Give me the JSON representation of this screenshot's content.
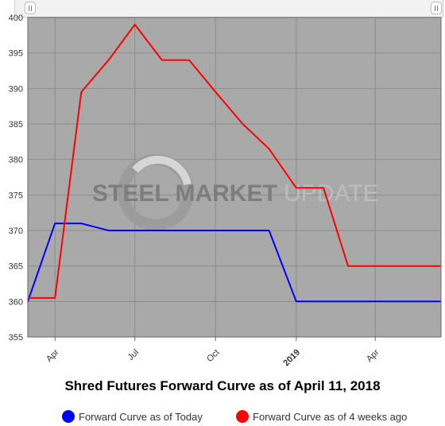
{
  "chart_data": {
    "type": "line",
    "title": "Shred Futures Forward Curve as of April 11, 2018",
    "ylim": [
      355,
      400
    ],
    "yticks": [
      355,
      360,
      365,
      370,
      375,
      380,
      385,
      390,
      395,
      400
    ],
    "xlim": [
      "2018-03-01",
      "2019-06-15"
    ],
    "xticks": [
      {
        "date": "2018-04-01",
        "label": "Apr",
        "bold": false
      },
      {
        "date": "2018-07-01",
        "label": "Jul",
        "bold": false
      },
      {
        "date": "2018-10-01",
        "label": "Oct",
        "bold": false
      },
      {
        "date": "2019-01-01",
        "label": "2019",
        "bold": true
      },
      {
        "date": "2019-04-01",
        "label": "Apr",
        "bold": false
      }
    ],
    "grid": true,
    "legend_position": "bottom",
    "series": [
      {
        "name": "Forward Curve as of Today",
        "color": "#0000ff",
        "points": [
          [
            "2018-03-01",
            360
          ],
          [
            "2018-04-01",
            371
          ],
          [
            "2018-05-01",
            371
          ],
          [
            "2018-06-01",
            370
          ],
          [
            "2018-07-01",
            370
          ],
          [
            "2018-08-01",
            370
          ],
          [
            "2018-09-01",
            370
          ],
          [
            "2018-10-01",
            370
          ],
          [
            "2018-11-01",
            370
          ],
          [
            "2018-12-01",
            370
          ],
          [
            "2019-01-01",
            360
          ],
          [
            "2019-02-01",
            360
          ],
          [
            "2019-03-01",
            360
          ],
          [
            "2019-04-01",
            360
          ],
          [
            "2019-05-01",
            360
          ],
          [
            "2019-06-15",
            360
          ]
        ]
      },
      {
        "name": "Forward Curve as of 4 weeks ago",
        "color": "#ff0000",
        "points": [
          [
            "2018-03-01",
            360.5
          ],
          [
            "2018-04-01",
            360.5
          ],
          [
            "2018-05-01",
            389.5
          ],
          [
            "2018-06-01",
            394
          ],
          [
            "2018-07-01",
            399
          ],
          [
            "2018-08-01",
            394
          ],
          [
            "2018-09-01",
            394
          ],
          [
            "2018-10-01",
            389.5
          ],
          [
            "2018-11-01",
            385
          ],
          [
            "2018-12-01",
            381.5
          ],
          [
            "2019-01-01",
            376
          ],
          [
            "2019-02-01",
            376
          ],
          [
            "2019-03-01",
            365
          ],
          [
            "2019-04-01",
            365
          ],
          [
            "2019-05-01",
            365
          ],
          [
            "2019-06-15",
            365
          ]
        ]
      }
    ]
  },
  "watermark": {
    "bold_text": "STEEL MARKET",
    "light_text": "UPDATE"
  }
}
